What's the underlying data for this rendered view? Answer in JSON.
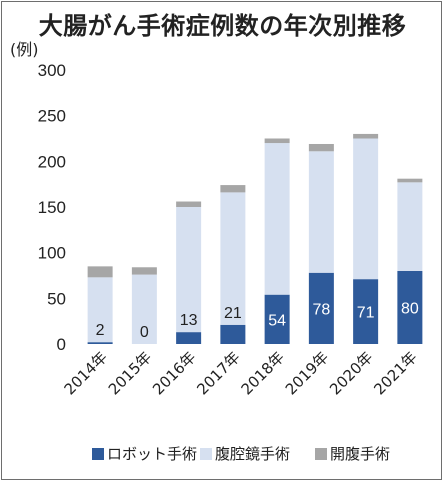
{
  "unit_label": "(例)",
  "colors": {
    "robot": "#2e5a9a",
    "laparoscopic": "#d6e0f0",
    "open": "#a6a6a6",
    "label_dark": "#222222",
    "label_light": "#ffffff"
  },
  "chart_data": {
    "type": "bar",
    "stacked": true,
    "title": "大腸がん手術症例数の年次別推移",
    "categories": [
      "2014年",
      "2015年",
      "2016年",
      "2017年",
      "2018年",
      "2019年",
      "2020年",
      "2021年"
    ],
    "series": [
      {
        "name": "ロボット手術",
        "color": "#2e5a9a",
        "values": [
          2,
          0,
          13,
          21,
          54,
          78,
          71,
          80
        ],
        "labels": [
          "2",
          "0",
          "13",
          "21",
          "54",
          "78",
          "71",
          "80"
        ]
      },
      {
        "name": "腹腔鏡手術",
        "color": "#d6e0f0",
        "values": [
          71,
          76,
          137,
          145,
          166,
          133,
          154,
          97
        ]
      },
      {
        "name": "開腹手術",
        "color": "#a6a6a6",
        "values": [
          12,
          8,
          6,
          8,
          5,
          8,
          5,
          4
        ]
      }
    ],
    "ylim": [
      0,
      300
    ],
    "yticks": [
      0,
      50,
      100,
      150,
      200,
      250,
      300
    ],
    "grid": false,
    "legend_position": "bottom"
  }
}
